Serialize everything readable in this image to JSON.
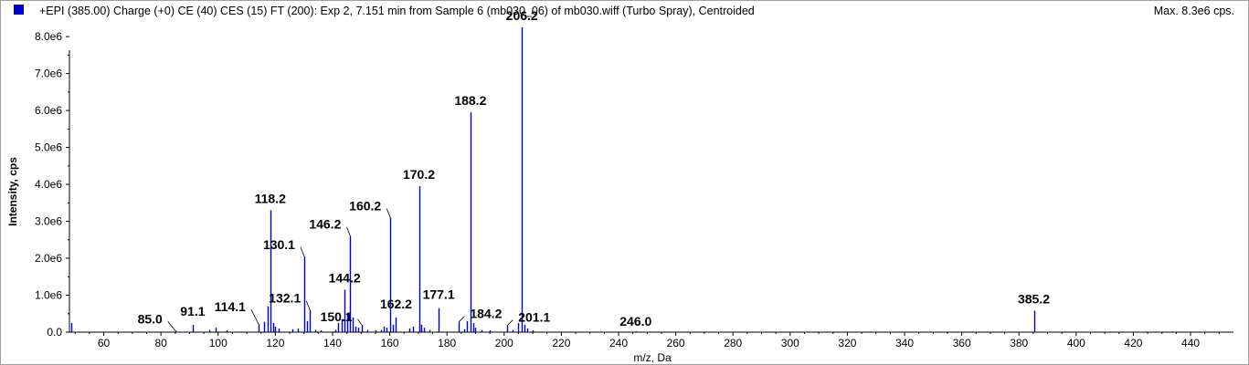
{
  "header": {
    "title": "+EPI (385.00) Charge (+0) CE (40) CES (15) FT (200): Exp 2, 7.151 min from Sample 6 (mb030_06) of mb030.wiff (Turbo Spray), Centroided",
    "max_label": "Max. 8.3e6 cps."
  },
  "colors": {
    "series": "#0000cc",
    "marker": "#0000cc",
    "axis": "#000000"
  },
  "chart_data": {
    "type": "bar",
    "xlabel": "m/z, Da",
    "ylabel": "Intensity, cps",
    "xlim": [
      48,
      455
    ],
    "ylim": [
      0,
      8300000
    ],
    "grid": false,
    "x_ticks": [
      60,
      80,
      100,
      120,
      140,
      160,
      180,
      200,
      220,
      240,
      260,
      280,
      300,
      320,
      340,
      360,
      380,
      400,
      420,
      440
    ],
    "y_ticks": [
      {
        "value": 0,
        "label": "0.0"
      },
      {
        "value": 1000000,
        "label": "1.0e6"
      },
      {
        "value": 2000000,
        "label": "2.0e6"
      },
      {
        "value": 3000000,
        "label": "3.0e6"
      },
      {
        "value": 4000000,
        "label": "4.0e6"
      },
      {
        "value": 5000000,
        "label": "5.0e6"
      },
      {
        "value": 6000000,
        "label": "6.0e6"
      },
      {
        "value": 7000000,
        "label": "7.0e6"
      },
      {
        "value": 8000000,
        "label": "8.0e6"
      }
    ],
    "peaks": [
      {
        "mz": 48.5,
        "intensity": 250000
      },
      {
        "mz": 85.0,
        "intensity": 40000,
        "label": "85.0"
      },
      {
        "mz": 91.1,
        "intensity": 200000,
        "label": "91.1"
      },
      {
        "mz": 97.0,
        "intensity": 60000
      },
      {
        "mz": 99.0,
        "intensity": 120000
      },
      {
        "mz": 103.0,
        "intensity": 50000
      },
      {
        "mz": 114.1,
        "intensity": 220000,
        "label": "114.1"
      },
      {
        "mz": 116.0,
        "intensity": 280000
      },
      {
        "mz": 117.2,
        "intensity": 700000
      },
      {
        "mz": 118.2,
        "intensity": 3300000,
        "label": "118.2"
      },
      {
        "mz": 119.2,
        "intensity": 250000
      },
      {
        "mz": 120.0,
        "intensity": 150000
      },
      {
        "mz": 121.0,
        "intensity": 100000
      },
      {
        "mz": 126.0,
        "intensity": 80000
      },
      {
        "mz": 128.0,
        "intensity": 100000
      },
      {
        "mz": 130.1,
        "intensity": 2050000,
        "label": "130.1"
      },
      {
        "mz": 131.0,
        "intensity": 300000
      },
      {
        "mz": 132.1,
        "intensity": 600000,
        "label": "132.1"
      },
      {
        "mz": 134.0,
        "intensity": 60000
      },
      {
        "mz": 136.0,
        "intensity": 50000
      },
      {
        "mz": 141.0,
        "intensity": 60000
      },
      {
        "mz": 142.0,
        "intensity": 250000
      },
      {
        "mz": 143.1,
        "intensity": 350000
      },
      {
        "mz": 144.2,
        "intensity": 1150000,
        "label": "144.2"
      },
      {
        "mz": 145.1,
        "intensity": 500000
      },
      {
        "mz": 146.2,
        "intensity": 2600000,
        "label": "146.2"
      },
      {
        "mz": 147.1,
        "intensity": 400000
      },
      {
        "mz": 148.0,
        "intensity": 150000
      },
      {
        "mz": 149.0,
        "intensity": 120000
      },
      {
        "mz": 150.1,
        "intensity": 200000,
        "label": "150.1"
      },
      {
        "mz": 152.0,
        "intensity": 60000
      },
      {
        "mz": 155.0,
        "intensity": 50000
      },
      {
        "mz": 157.0,
        "intensity": 60000
      },
      {
        "mz": 158.0,
        "intensity": 150000
      },
      {
        "mz": 159.0,
        "intensity": 120000
      },
      {
        "mz": 160.2,
        "intensity": 3100000,
        "label": "160.2"
      },
      {
        "mz": 161.0,
        "intensity": 200000
      },
      {
        "mz": 162.2,
        "intensity": 400000,
        "label": "162.2"
      },
      {
        "mz": 167.0,
        "intensity": 100000
      },
      {
        "mz": 168.0,
        "intensity": 150000
      },
      {
        "mz": 170.2,
        "intensity": 3950000,
        "label": "170.2"
      },
      {
        "mz": 171.0,
        "intensity": 200000
      },
      {
        "mz": 172.0,
        "intensity": 120000
      },
      {
        "mz": 174.0,
        "intensity": 60000
      },
      {
        "mz": 177.1,
        "intensity": 650000,
        "label": "177.1"
      },
      {
        "mz": 184.2,
        "intensity": 280000,
        "label": "184.2"
      },
      {
        "mz": 186.0,
        "intensity": 80000
      },
      {
        "mz": 187.1,
        "intensity": 300000
      },
      {
        "mz": 188.2,
        "intensity": 5950000,
        "label": "188.2"
      },
      {
        "mz": 189.1,
        "intensity": 250000
      },
      {
        "mz": 190.0,
        "intensity": 120000
      },
      {
        "mz": 192.0,
        "intensity": 60000
      },
      {
        "mz": 195.0,
        "intensity": 50000
      },
      {
        "mz": 201.1,
        "intensity": 180000,
        "label": "201.1"
      },
      {
        "mz": 203.0,
        "intensity": 60000
      },
      {
        "mz": 205.0,
        "intensity": 250000
      },
      {
        "mz": 206.2,
        "intensity": 8250000,
        "label": "206.2"
      },
      {
        "mz": 207.1,
        "intensity": 200000
      },
      {
        "mz": 208.0,
        "intensity": 100000
      },
      {
        "mz": 210.0,
        "intensity": 50000
      },
      {
        "mz": 246.0,
        "intensity": 20000,
        "label": "246.0"
      },
      {
        "mz": 385.2,
        "intensity": 580000,
        "label": "385.2"
      }
    ]
  }
}
